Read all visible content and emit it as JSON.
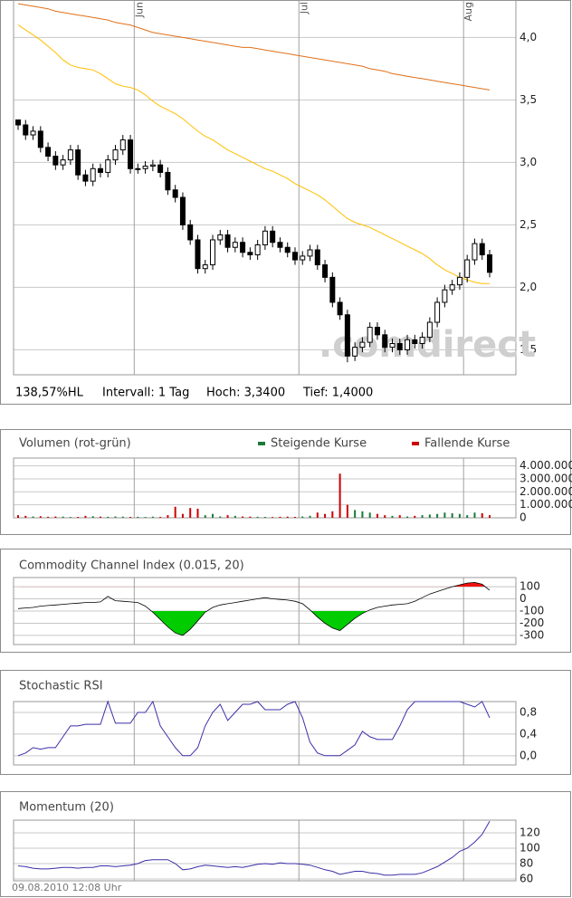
{
  "chart_data": [
    {
      "type": "candlestick",
      "categories": [
        null,
        null,
        null,
        null,
        null,
        null,
        null,
        null,
        null,
        null,
        null,
        null,
        null,
        null,
        null,
        null,
        "Jun",
        null,
        null,
        null,
        null,
        null,
        null,
        null,
        null,
        null,
        null,
        null,
        null,
        null,
        null,
        null,
        null,
        null,
        null,
        null,
        null,
        null,
        "Jul",
        null,
        null,
        null,
        null,
        null,
        null,
        null,
        null,
        null,
        null,
        null,
        null,
        null,
        null,
        null,
        null,
        null,
        null,
        null,
        null,
        null,
        "Aug",
        null,
        null,
        null
      ],
      "open": [
        3.34,
        3.3,
        3.22,
        3.25,
        3.12,
        3.05,
        2.98,
        3.02,
        3.1,
        2.9,
        2.85,
        2.95,
        2.92,
        3.02,
        3.1,
        3.18,
        2.95,
        2.95,
        2.97,
        2.98,
        2.92,
        2.78,
        2.72,
        2.5,
        2.38,
        2.15,
        2.18,
        2.38,
        2.42,
        2.32,
        2.36,
        2.28,
        2.26,
        2.34,
        2.45,
        2.36,
        2.32,
        2.28,
        2.22,
        2.25,
        2.3,
        2.18,
        2.08,
        1.88,
        1.78,
        1.45,
        1.52,
        1.56,
        1.68,
        1.62,
        1.52,
        1.55,
        1.5,
        1.58,
        1.55,
        1.6,
        1.72,
        1.88,
        1.98,
        2.02,
        2.08,
        2.22,
        2.35,
        2.26
      ],
      "high": [
        3.34,
        3.34,
        3.29,
        3.29,
        3.16,
        3.09,
        3.06,
        3.14,
        3.14,
        2.94,
        2.99,
        2.99,
        3.06,
        3.14,
        3.22,
        3.22,
        2.99,
        3.01,
        3.02,
        3.02,
        2.96,
        2.82,
        2.76,
        2.54,
        2.42,
        2.22,
        2.42,
        2.46,
        2.46,
        2.4,
        2.4,
        2.32,
        2.38,
        2.49,
        2.49,
        2.4,
        2.36,
        2.32,
        2.29,
        2.34,
        2.34,
        2.22,
        2.12,
        1.92,
        1.82,
        1.56,
        1.6,
        1.72,
        1.72,
        1.66,
        1.59,
        1.59,
        1.62,
        1.62,
        1.64,
        1.76,
        1.92,
        2.02,
        2.06,
        2.12,
        2.26,
        2.39,
        2.39,
        2.3
      ],
      "low": [
        3.26,
        3.18,
        3.18,
        3.08,
        3.01,
        2.94,
        2.94,
        2.98,
        2.86,
        2.81,
        2.81,
        2.88,
        2.88,
        2.98,
        3.06,
        2.91,
        2.91,
        2.91,
        2.93,
        2.88,
        2.74,
        2.68,
        2.46,
        2.34,
        2.11,
        2.11,
        2.14,
        2.34,
        2.28,
        2.28,
        2.24,
        2.22,
        2.22,
        2.3,
        2.32,
        2.28,
        2.24,
        2.18,
        2.18,
        2.21,
        2.14,
        2.04,
        1.84,
        1.74,
        1.4,
        1.41,
        1.48,
        1.52,
        1.58,
        1.48,
        1.48,
        1.46,
        1.46,
        1.51,
        1.51,
        1.56,
        1.68,
        1.84,
        1.94,
        1.98,
        2.04,
        2.18,
        2.22,
        2.08
      ],
      "close": [
        3.3,
        3.22,
        3.25,
        3.12,
        3.05,
        2.98,
        3.02,
        3.1,
        2.9,
        2.85,
        2.95,
        2.92,
        3.02,
        3.1,
        3.18,
        2.95,
        2.95,
        2.97,
        2.98,
        2.92,
        2.78,
        2.72,
        2.5,
        2.38,
        2.15,
        2.18,
        2.38,
        2.42,
        2.32,
        2.36,
        2.28,
        2.26,
        2.34,
        2.45,
        2.36,
        2.32,
        2.28,
        2.22,
        2.25,
        2.3,
        2.18,
        2.08,
        1.88,
        1.78,
        1.45,
        1.52,
        1.56,
        1.68,
        1.62,
        1.52,
        1.55,
        1.5,
        1.58,
        1.55,
        1.6,
        1.72,
        1.88,
        1.98,
        2.02,
        2.08,
        2.22,
        2.35,
        2.26,
        2.12
      ],
      "color": "#000000",
      "series": [
        {
          "color": "#e0701a",
          "values": [
            4.27,
            4.26,
            4.25,
            4.24,
            4.23,
            4.21,
            4.2,
            4.19,
            4.18,
            4.17,
            4.16,
            4.15,
            4.14,
            4.12,
            4.11,
            4.1,
            4.08,
            4.06,
            4.04,
            4.03,
            4.02,
            4.01,
            4.0,
            3.99,
            3.98,
            3.97,
            3.96,
            3.95,
            3.94,
            3.93,
            3.92,
            3.92,
            3.91,
            3.9,
            3.89,
            3.88,
            3.87,
            3.86,
            3.85,
            3.84,
            3.83,
            3.82,
            3.81,
            3.8,
            3.79,
            3.78,
            3.77,
            3.75,
            3.74,
            3.73,
            3.71,
            3.7,
            3.69,
            3.68,
            3.67,
            3.66,
            3.65,
            3.64,
            3.63,
            3.62,
            3.61,
            3.6,
            3.59,
            3.58
          ]
        },
        {
          "color": "#ffbf00",
          "values": [
            4.1,
            4.06,
            4.02,
            3.98,
            3.93,
            3.88,
            3.82,
            3.78,
            3.76,
            3.75,
            3.74,
            3.71,
            3.67,
            3.63,
            3.61,
            3.6,
            3.58,
            3.54,
            3.49,
            3.45,
            3.42,
            3.39,
            3.35,
            3.3,
            3.25,
            3.21,
            3.18,
            3.14,
            3.1,
            3.07,
            3.04,
            3.01,
            2.98,
            2.95,
            2.93,
            2.9,
            2.87,
            2.83,
            2.8,
            2.77,
            2.74,
            2.7,
            2.65,
            2.6,
            2.55,
            2.52,
            2.5,
            2.48,
            2.45,
            2.42,
            2.39,
            2.36,
            2.33,
            2.3,
            2.27,
            2.23,
            2.18,
            2.14,
            2.11,
            2.08,
            2.06,
            2.04,
            2.03,
            2.03
          ]
        }
      ],
      "ylim": [
        1.3,
        4.3
      ],
      "yticks": [
        {
          "value": 1.5,
          "label": "1,5"
        },
        {
          "value": 2,
          "label": "2,0"
        },
        {
          "value": 2.5,
          "label": "2,5"
        },
        {
          "value": 3,
          "label": "3,0"
        },
        {
          "value": 3.5,
          "label": "3,5"
        },
        {
          "value": 4,
          "label": "4,0"
        }
      ],
      "grid": true,
      "watermark": ".comdirect",
      "info": [
        "138,57%HL",
        "Intervall: 1 Tag",
        "Hoch: 3,3400",
        "Tief: 1,4000"
      ]
    },
    {
      "type": "bar",
      "title": "Volumen (rot-grün)",
      "series": [
        {
          "name": "Steigende Kurse",
          "color": "#1a7a3a",
          "values": [
            null,
            null,
            100000,
            null,
            null,
            null,
            90000,
            60000,
            null,
            null,
            120000,
            null,
            80000,
            100000,
            90000,
            null,
            80000,
            60000,
            90000,
            null,
            null,
            null,
            null,
            null,
            null,
            200000,
            300000,
            100000,
            null,
            150000,
            null,
            null,
            80000,
            70000,
            null,
            null,
            null,
            null,
            100000,
            150000,
            null,
            null,
            null,
            null,
            null,
            600000,
            500000,
            400000,
            null,
            null,
            150000,
            null,
            100000,
            null,
            200000,
            250000,
            300000,
            400000,
            350000,
            300000,
            200000,
            400000,
            null,
            null
          ]
        },
        {
          "name": "Fallende Kurse",
          "color": "#cc0000",
          "values": [
            200000,
            150000,
            null,
            120000,
            80000,
            100000,
            null,
            null,
            70000,
            150000,
            null,
            90000,
            null,
            null,
            null,
            70000,
            null,
            null,
            null,
            70000,
            200000,
            850000,
            300000,
            750000,
            700000,
            null,
            null,
            null,
            200000,
            null,
            100000,
            90000,
            null,
            null,
            60000,
            80000,
            90000,
            70000,
            null,
            null,
            400000,
            300000,
            500000,
            3400000,
            1000000,
            null,
            null,
            null,
            300000,
            200000,
            null,
            200000,
            null,
            150000,
            null,
            null,
            null,
            null,
            null,
            null,
            null,
            null,
            350000,
            200000
          ]
        }
      ],
      "ylim": [
        0,
        4600000
      ],
      "yticks": [
        0,
        {
          "value": 1000000,
          "label": "1.000.000"
        },
        {
          "value": 2000000,
          "label": "2.000.000"
        },
        {
          "value": 3000000,
          "label": "3.000.000"
        },
        {
          "value": 4000000,
          "label": "4.000.000"
        }
      ],
      "grid": true
    },
    {
      "type": "area",
      "title": "Commodity Channel Index (0.015, 20)",
      "values": [
        -80,
        -75,
        -70,
        -60,
        -55,
        -50,
        -45,
        -40,
        -35,
        -30,
        -30,
        -25,
        20,
        -15,
        -20,
        -25,
        -30,
        -60,
        -110,
        -170,
        -230,
        -280,
        -300,
        -250,
        -180,
        -110,
        -70,
        -50,
        -40,
        -30,
        -20,
        -10,
        0,
        10,
        0,
        -5,
        -10,
        -20,
        -40,
        -90,
        -150,
        -200,
        -240,
        -260,
        -210,
        -160,
        -120,
        -90,
        -70,
        -60,
        -50,
        -45,
        -40,
        -20,
        10,
        40,
        60,
        80,
        100,
        115,
        130,
        135,
        120,
        70
      ],
      "color": "#000000",
      "bands": [
        {
          "below": -100,
          "color": "#00cc00"
        },
        {
          "above": 100,
          "color": "#ee1111"
        }
      ],
      "ylim": [
        -375,
        175
      ],
      "yticks": [
        100,
        0,
        -100,
        -200,
        -300
      ],
      "grid": true
    },
    {
      "type": "line",
      "title": "Stochastic RSI",
      "values": [
        0,
        0.05,
        0.15,
        0.12,
        0.15,
        0.15,
        0.35,
        0.55,
        0.55,
        0.58,
        0.58,
        0.58,
        1.0,
        0.6,
        0.6,
        0.6,
        0.8,
        0.8,
        1.0,
        0.55,
        0.35,
        0.15,
        0,
        0,
        0.15,
        0.55,
        0.8,
        0.95,
        0.65,
        0.8,
        0.95,
        0.95,
        1.0,
        0.85,
        0.85,
        0.85,
        0.95,
        1.0,
        0.7,
        0.25,
        0.05,
        0,
        0,
        0,
        0.1,
        0.2,
        0.45,
        0.35,
        0.3,
        0.3,
        0.3,
        0.55,
        0.85,
        1.0,
        1.0,
        1.0,
        1.0,
        1.0,
        1.0,
        1.0,
        0.95,
        0.9,
        1.0,
        0.7
      ],
      "color": "#3b2fa8",
      "ylim": [
        -0.17,
        1.0
      ],
      "yticks": [
        {
          "value": 0,
          "label": "0,0"
        },
        {
          "value": 0.4,
          "label": "0,4"
        },
        {
          "value": 0.8,
          "label": "0,8"
        }
      ],
      "grid": true
    },
    {
      "type": "line",
      "title": "Momentum (20)",
      "values": [
        77,
        76,
        74,
        73,
        73,
        74,
        75,
        75,
        74,
        75,
        75,
        77,
        77,
        76,
        77,
        78,
        80,
        84,
        85,
        85,
        85,
        80,
        72,
        73,
        76,
        78,
        77,
        76,
        75,
        76,
        75,
        77,
        79,
        80,
        79,
        81,
        80,
        80,
        79,
        78,
        75,
        72,
        70,
        66,
        68,
        70,
        70,
        68,
        67,
        65,
        65,
        66,
        66,
        66,
        68,
        72,
        76,
        82,
        88,
        96,
        100,
        108,
        118,
        135
      ],
      "color": "#3b2fa8",
      "ylim": [
        57.6,
        136.5
      ],
      "yticks": [
        60,
        80,
        100,
        120
      ],
      "grid": true,
      "footnote": "09.08.2010 12:08 Uhr"
    }
  ]
}
